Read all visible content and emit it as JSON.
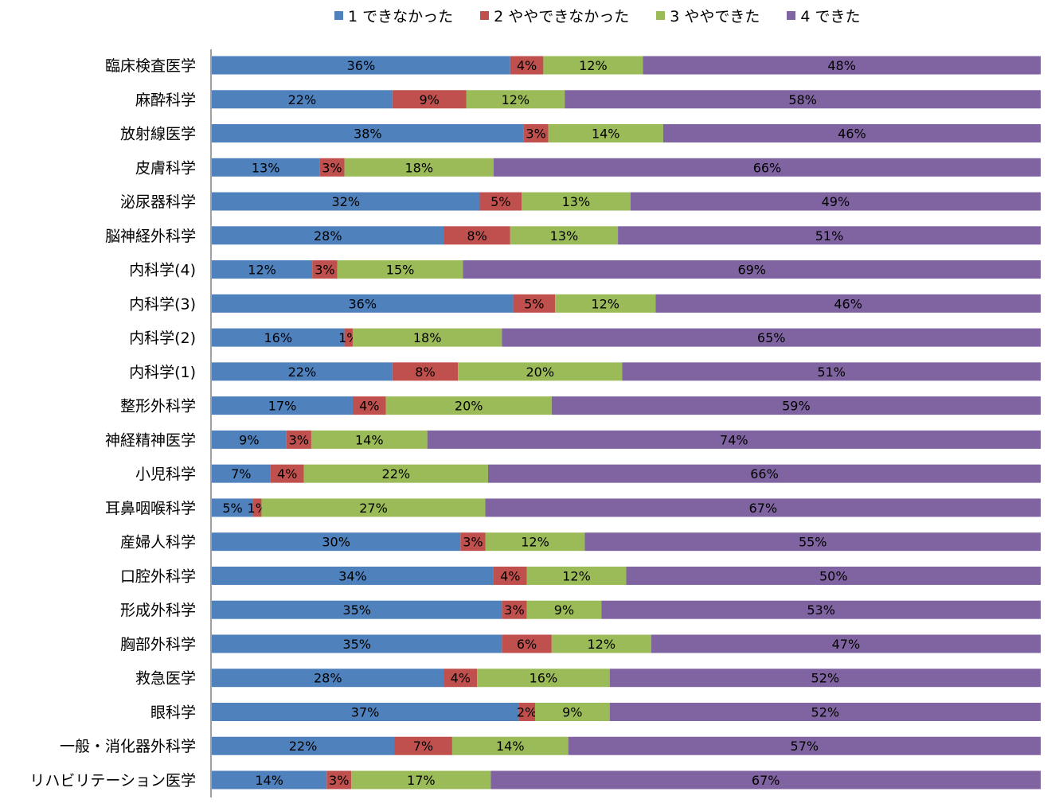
{
  "chart_data": {
    "type": "bar",
    "orientation": "horizontal",
    "stacked": true,
    "percent_stacked": true,
    "legend_position": "top",
    "categories": [
      "臨床検査医学",
      "麻酔科学",
      "放射線医学",
      "皮膚科学",
      "泌尿器科学",
      "脳神経外科学",
      "内科学(4)",
      "内科学(3)",
      "内科学(2)",
      "内科学(1)",
      "整形外科学",
      "神経精神医学",
      "小児科学",
      "耳鼻咽喉科学",
      "産婦人科学",
      "口腔外科学",
      "形成外科学",
      "胸部外科学",
      "救急医学",
      "眼科学",
      "一般・消化器外科学",
      "リハビリテーション医学"
    ],
    "series": [
      {
        "name": "1 できなかった",
        "color": "#4F81BD",
        "values": [
          36,
          22,
          38,
          13,
          32,
          28,
          12,
          36,
          16,
          22,
          17,
          9,
          7,
          5,
          30,
          34,
          35,
          35,
          28,
          37,
          22,
          14
        ]
      },
      {
        "name": "2 ややできなかった",
        "color": "#C0504D",
        "values": [
          4,
          9,
          3,
          3,
          5,
          8,
          3,
          5,
          1,
          8,
          4,
          3,
          4,
          1,
          3,
          4,
          3,
          6,
          4,
          2,
          7,
          3
        ]
      },
      {
        "name": "3 ややできた",
        "color": "#9BBB59",
        "values": [
          12,
          12,
          14,
          18,
          13,
          13,
          15,
          12,
          18,
          20,
          20,
          14,
          22,
          27,
          12,
          12,
          9,
          12,
          16,
          9,
          14,
          17
        ]
      },
      {
        "name": "4 できた",
        "color": "#8064A2",
        "values": [
          48,
          58,
          46,
          66,
          49,
          51,
          69,
          46,
          65,
          51,
          59,
          74,
          66,
          67,
          55,
          50,
          53,
          47,
          52,
          52,
          57,
          67
        ]
      }
    ],
    "value_suffix": "%",
    "grid": false
  }
}
